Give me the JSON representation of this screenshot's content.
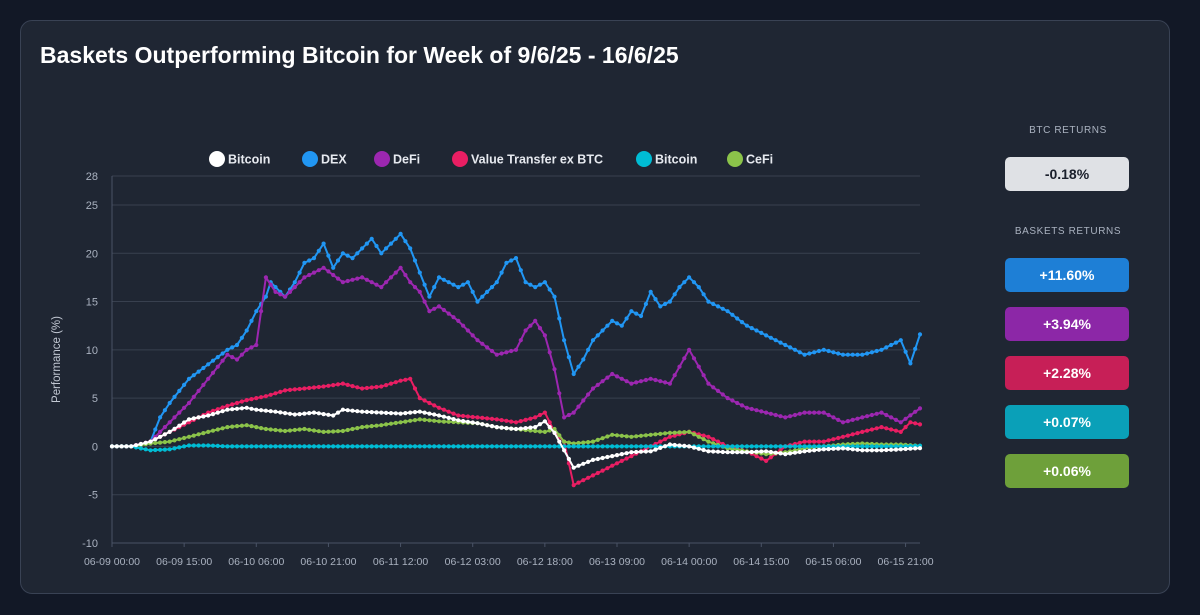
{
  "title": "Baskets Outperforming Bitcoin for Week of 9/6/25 - 16/6/25",
  "sidebar": {
    "btc_heading": "BTC RETURNS",
    "btc_value": "-0.18%",
    "baskets_heading": "BASKETS RETURNS",
    "baskets": [
      {
        "value": "+11.60%",
        "color": "#1e7fd6"
      },
      {
        "value": "+3.94%",
        "color": "#8c27a7"
      },
      {
        "value": "+2.28%",
        "color": "#c71f57"
      },
      {
        "value": "+0.07%",
        "color": "#0aa0b8"
      },
      {
        "value": "+0.06%",
        "color": "#6ea03a"
      }
    ]
  },
  "chart_data": {
    "type": "line",
    "ylabel": "Performance (%)",
    "xlabel": "",
    "ylim": [
      -10,
      28
    ],
    "y_ticks": [
      -10,
      -5,
      0,
      5,
      10,
      15,
      20,
      25,
      28
    ],
    "x_tick_labels": [
      "06-09 00:00",
      "06-09 15:00",
      "06-10 06:00",
      "06-10 21:00",
      "06-11 12:00",
      "06-12 03:00",
      "06-12 18:00",
      "06-13 09:00",
      "06-14 00:00",
      "06-14 15:00",
      "06-15 06:00",
      "06-15 21:00"
    ],
    "x_tick_hours": [
      0,
      15,
      30,
      45,
      60,
      75,
      90,
      105,
      120,
      135,
      150,
      165
    ],
    "x_range_hours": [
      0,
      168
    ],
    "grid": true,
    "legend_position": "top",
    "series": [
      {
        "name": "Bitcoin",
        "color": "#ffffff",
        "x": [
          0,
          4,
          8,
          12,
          16,
          20,
          24,
          28,
          30,
          34,
          38,
          42,
          46,
          48,
          52,
          56,
          60,
          64,
          68,
          72,
          76,
          80,
          84,
          88,
          90,
          92,
          96,
          100,
          104,
          108,
          112,
          116,
          120,
          124,
          128,
          132,
          136,
          140,
          144,
          148,
          152,
          156,
          160,
          164,
          168
        ],
        "y": [
          0,
          0,
          0.5,
          1.5,
          2.8,
          3.2,
          3.8,
          4.0,
          3.8,
          3.6,
          3.3,
          3.5,
          3.2,
          3.8,
          3.6,
          3.5,
          3.4,
          3.6,
          3.2,
          2.7,
          2.4,
          2.0,
          1.8,
          2.0,
          2.6,
          1.4,
          -2.2,
          -1.4,
          -1.0,
          -0.6,
          -0.5,
          0.2,
          0,
          -0.5,
          -0.6,
          -0.6,
          -0.5,
          -0.8,
          -0.5,
          -0.3,
          -0.2,
          -0.4,
          -0.4,
          -0.3,
          -0.18
        ]
      },
      {
        "name": "DEX",
        "color": "#2196f3",
        "x": [
          0,
          4,
          8,
          10,
          12,
          16,
          20,
          24,
          26,
          28,
          30,
          32,
          33,
          34,
          36,
          38,
          40,
          42,
          44,
          46,
          48,
          50,
          52,
          54,
          56,
          58,
          60,
          62,
          64,
          66,
          68,
          70,
          72,
          74,
          76,
          78,
          80,
          82,
          84,
          86,
          88,
          90,
          92,
          94,
          96,
          98,
          100,
          102,
          104,
          106,
          108,
          110,
          112,
          114,
          116,
          118,
          120,
          122,
          124,
          128,
          132,
          136,
          140,
          144,
          148,
          152,
          156,
          160,
          164,
          166,
          168
        ],
        "y": [
          0,
          0,
          0.5,
          3,
          4.5,
          7,
          8.5,
          10,
          10.5,
          12,
          14,
          15.5,
          17,
          16.5,
          15.5,
          17,
          19,
          19.5,
          21,
          18.5,
          20,
          19.5,
          20.5,
          21.5,
          20,
          21,
          22,
          20.5,
          18,
          15.5,
          17.5,
          17,
          16.5,
          17,
          15,
          16,
          17,
          19,
          19.5,
          17,
          16.5,
          17,
          15.5,
          11,
          7.5,
          9,
          11,
          12,
          13,
          12.5,
          14,
          13.5,
          16,
          14.5,
          15,
          16.5,
          17.5,
          16.5,
          15,
          14,
          12.5,
          11.5,
          10.5,
          9.5,
          10,
          9.5,
          9.5,
          10,
          11,
          8.6,
          11.6
        ]
      },
      {
        "name": "DeFi",
        "color": "#9c27b0",
        "x": [
          0,
          4,
          8,
          12,
          16,
          20,
          24,
          26,
          28,
          30,
          32,
          34,
          36,
          38,
          40,
          44,
          48,
          52,
          56,
          60,
          62,
          64,
          66,
          68,
          72,
          76,
          80,
          84,
          86,
          88,
          90,
          92,
          94,
          96,
          100,
          104,
          108,
          112,
          116,
          120,
          124,
          128,
          132,
          136,
          140,
          144,
          148,
          152,
          156,
          160,
          164,
          168
        ],
        "y": [
          0,
          0,
          0.5,
          2.5,
          4.5,
          7,
          9.5,
          9,
          10,
          10.5,
          17.5,
          16,
          15.5,
          16.5,
          17.5,
          18.5,
          17,
          17.5,
          16.5,
          18.5,
          17,
          16,
          14,
          14.5,
          13,
          11,
          9.5,
          10,
          12,
          13,
          11.5,
          8,
          3,
          3.5,
          6,
          7.5,
          6.5,
          7,
          6.5,
          10,
          6.5,
          5,
          4,
          3.5,
          3,
          3.5,
          3.5,
          2.5,
          3,
          3.5,
          2.5,
          3.94
        ]
      },
      {
        "name": "Value Transfer ex BTC",
        "color": "#e91e63",
        "x": [
          0,
          4,
          8,
          12,
          16,
          20,
          24,
          28,
          32,
          36,
          40,
          44,
          48,
          52,
          56,
          60,
          62,
          64,
          68,
          72,
          76,
          80,
          84,
          88,
          90,
          92,
          94,
          96,
          100,
          104,
          108,
          112,
          116,
          120,
          124,
          128,
          132,
          136,
          140,
          144,
          148,
          152,
          156,
          160,
          164,
          166,
          168
        ],
        "y": [
          0,
          0,
          0.5,
          1.5,
          2.5,
          3.5,
          4.2,
          4.8,
          5.2,
          5.8,
          6,
          6.2,
          6.5,
          6,
          6.2,
          6.8,
          7,
          5,
          4,
          3.2,
          3,
          2.8,
          2.5,
          3,
          3.5,
          1.5,
          0.5,
          -4,
          -3,
          -2,
          -1,
          0,
          1,
          1.5,
          1,
          0,
          -0.5,
          -1.5,
          0,
          0.5,
          0.5,
          1,
          1.5,
          2,
          1.5,
          2.5,
          2.28
        ]
      },
      {
        "name": "Bitcoin",
        "color": "#00bcd4",
        "x": [
          0,
          4,
          8,
          12,
          16,
          20,
          24,
          28,
          32,
          36,
          40,
          44,
          48,
          52,
          56,
          60,
          64,
          68,
          72,
          76,
          80,
          84,
          88,
          90,
          92,
          96,
          100,
          104,
          108,
          112,
          116,
          120,
          124,
          128,
          132,
          136,
          140,
          144,
          148,
          152,
          156,
          160,
          164,
          168
        ],
        "y": [
          0,
          0,
          -0.4,
          -0.3,
          0.1,
          0.1,
          0,
          0,
          0,
          0,
          0,
          0,
          0,
          0,
          0,
          0,
          0,
          0,
          0,
          0,
          0,
          0,
          0,
          0,
          0,
          0,
          0,
          0,
          0,
          0,
          0,
          0,
          0,
          0,
          0,
          0,
          0,
          0,
          0,
          0,
          0,
          0,
          0,
          0.07
        ]
      },
      {
        "name": "CeFi",
        "color": "#8bc34a",
        "x": [
          0,
          4,
          8,
          12,
          16,
          20,
          24,
          28,
          32,
          36,
          40,
          44,
          48,
          52,
          56,
          60,
          64,
          68,
          72,
          76,
          80,
          84,
          88,
          90,
          92,
          94,
          96,
          100,
          104,
          108,
          112,
          116,
          120,
          124,
          128,
          132,
          136,
          140,
          144,
          148,
          152,
          156,
          160,
          164,
          168
        ],
        "y": [
          0,
          0,
          0.3,
          0.5,
          1.0,
          1.5,
          2.0,
          2.2,
          1.8,
          1.6,
          1.8,
          1.5,
          1.6,
          2.0,
          2.2,
          2.5,
          2.8,
          2.6,
          2.5,
          2.4,
          2.0,
          1.8,
          1.6,
          1.5,
          1.8,
          0.5,
          0.3,
          0.5,
          1.2,
          1.0,
          1.2,
          1.4,
          1.5,
          0.5,
          -0.2,
          -0.5,
          -0.8,
          -0.6,
          -0.2,
          0,
          0.2,
          0.3,
          0.2,
          0.2,
          0.06
        ]
      }
    ]
  }
}
